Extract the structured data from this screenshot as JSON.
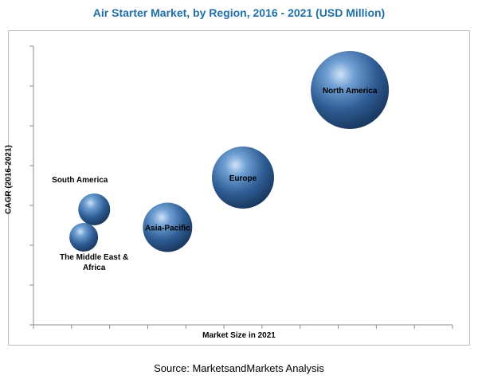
{
  "chart_data": {
    "type": "bubble",
    "title": "Air Starter Market, by Region, 2016 - 2021 (USD Million)",
    "xlabel": "Market Size in 2021",
    "ylabel": "CAGR (2016-2021)",
    "source": "Source: MarketsandMarkets Analysis",
    "grid": false,
    "x_ticks": 11,
    "y_ticks": 7,
    "series": [
      {
        "name": "South America",
        "x": 1.45,
        "y": 2.9,
        "size": 1.0
      },
      {
        "name": "The Middle East & Africa",
        "x": 1.2,
        "y": 2.2,
        "size": 0.9
      },
      {
        "name": "Asia-Pacific",
        "x": 3.2,
        "y": 2.45,
        "size": 1.55
      },
      {
        "name": "Europe",
        "x": 5.0,
        "y": 3.7,
        "size": 1.95
      },
      {
        "name": "North America",
        "x": 7.55,
        "y": 5.9,
        "size": 2.45
      }
    ],
    "xlim": [
      0,
      10
    ],
    "ylim": [
      0,
      7
    ]
  }
}
